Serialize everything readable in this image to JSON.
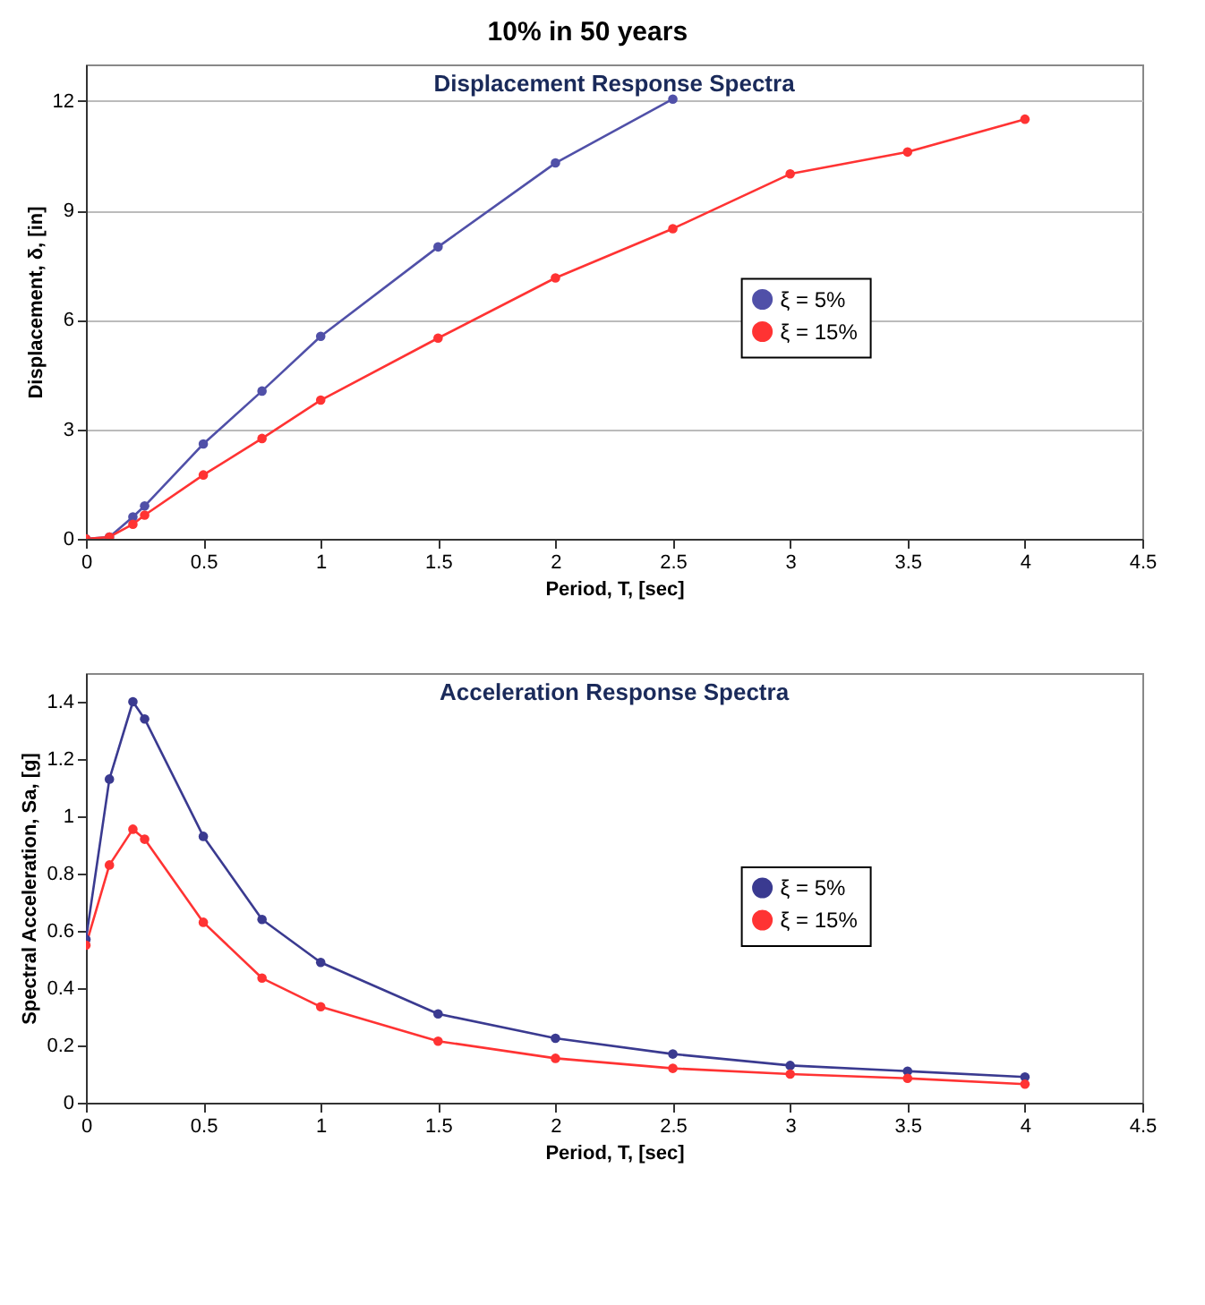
{
  "chart_data": [
    {
      "type": "line",
      "title": "10% in 50 years",
      "subtitle": "Displacement Response Spectra",
      "xlabel": "Period, T, [sec]",
      "ylabel": "Displacement, δ, [in]",
      "x": [
        0,
        0.1,
        0.2,
        0.25,
        0.5,
        0.75,
        1,
        1.5,
        2,
        2.5,
        3,
        3.5,
        4
      ],
      "series": [
        {
          "name": "ξ = 5%",
          "color": "#5050a8",
          "values": [
            0,
            0.05,
            0.6,
            0.9,
            2.6,
            4.05,
            5.55,
            8.0,
            10.3,
            12.05,
            null,
            null,
            null
          ]
        },
        {
          "name": "ξ = 15%",
          "color": "#ff3333",
          "values": [
            0,
            0.05,
            0.4,
            0.65,
            1.75,
            2.75,
            3.8,
            5.5,
            7.15,
            8.5,
            10.0,
            10.6,
            11.5
          ]
        }
      ],
      "xlim": [
        0,
        4.5
      ],
      "xticks": [
        0,
        0.5,
        1,
        1.5,
        2,
        2.5,
        3,
        3.5,
        4,
        4.5
      ],
      "ylim": [
        0,
        13
      ],
      "yticks": [
        0,
        3,
        6,
        9,
        12
      ],
      "grid": "y",
      "legend": "right",
      "marker": "circle"
    },
    {
      "type": "line",
      "title": "Acceleration Response Spectra",
      "xlabel": "Period, T, [sec]",
      "ylabel": "Spectral Acceleration, Sa, [g]",
      "x": [
        0,
        0.1,
        0.2,
        0.25,
        0.5,
        0.75,
        1,
        1.5,
        2,
        2.5,
        3,
        3.5,
        4
      ],
      "series": [
        {
          "name": "ξ = 5%",
          "color": "#3a3a90",
          "values": [
            0.57,
            1.13,
            1.4,
            1.34,
            0.93,
            0.64,
            0.49,
            0.31,
            0.225,
            0.17,
            0.13,
            0.11,
            0.09
          ]
        },
        {
          "name": "ξ = 15%",
          "color": "#ff3333",
          "values": [
            0.55,
            0.83,
            0.955,
            0.92,
            0.63,
            0.435,
            0.335,
            0.215,
            0.155,
            0.12,
            0.1,
            0.085,
            0.065
          ]
        }
      ],
      "xlim": [
        0,
        4.5
      ],
      "xticks": [
        0,
        0.5,
        1,
        1.5,
        2,
        2.5,
        3,
        3.5,
        4,
        4.5
      ],
      "ylim": [
        0,
        1.5
      ],
      "yticks": [
        0,
        0.2,
        0.4,
        0.6,
        0.8,
        1,
        1.2,
        1.4
      ],
      "grid": false,
      "legend": "right",
      "marker": "circle"
    }
  ]
}
